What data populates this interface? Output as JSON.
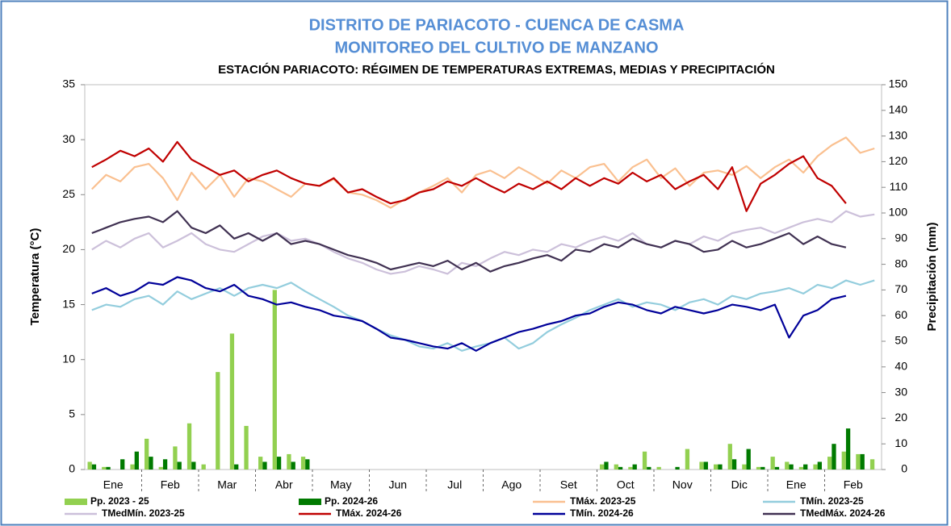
{
  "chart_data": {
    "type": "combo",
    "title": "DISTRITO DE PARIACOTO - CUENCA DE CASMA",
    "subtitle": "MONITOREO DEL CULTIVO DE MANZANO",
    "chart_title": "ESTACIÓN PARIACOTO: RÉGIMEN DE TEMPERATURAS EXTREMAS, MEDIAS Y PRECIPITACIÓN",
    "y_label": "Temperatura (°C)",
    "y2_label": "Precipitación (mm)",
    "categories": [
      null,
      null,
      "Ene",
      null,
      null,
      null,
      "Feb",
      null,
      null,
      null,
      "Mar",
      null,
      null,
      null,
      "Abr",
      null,
      null,
      null,
      "May",
      null,
      null,
      null,
      "Jun",
      null,
      null,
      null,
      "Jul",
      null,
      null,
      null,
      "Ago",
      null,
      null,
      null,
      "Set",
      null,
      null,
      null,
      "Oct",
      null,
      null,
      null,
      "Nov",
      null,
      null,
      null,
      "Dic",
      null,
      null,
      null,
      "Ene",
      null,
      null,
      null,
      "Feb",
      null
    ],
    "ylim": [
      0,
      35
    ],
    "yticks": [
      0,
      5,
      10,
      15,
      20,
      25,
      30,
      35
    ],
    "y2lim": [
      0,
      150
    ],
    "y2ticks": [
      0,
      10,
      20,
      30,
      40,
      50,
      60,
      70,
      80,
      90,
      100,
      110,
      120,
      130,
      140,
      150
    ],
    "grid": false,
    "legend": "bottom",
    "series": [
      {
        "name": "Pp. 2023 - 25",
        "type": "bar",
        "axis": "y2",
        "color": "#92d050",
        "values": [
          3,
          1,
          0,
          2,
          12,
          1,
          9,
          18,
          2,
          38,
          53,
          17,
          5,
          70,
          6,
          5,
          0,
          0,
          0,
          0,
          0,
          0,
          0,
          0,
          0,
          0,
          0,
          0,
          0,
          0,
          0,
          0,
          0,
          0,
          0,
          0,
          2,
          2,
          1,
          7,
          1,
          0,
          8,
          3,
          2,
          10,
          2,
          1,
          5,
          3,
          1,
          2,
          5,
          7,
          6,
          4
        ]
      },
      {
        "name": "Pp. 2024-26",
        "type": "bar",
        "axis": "y2",
        "color": "#007a00",
        "values": [
          2,
          1,
          4,
          7,
          5,
          4,
          3,
          3,
          0,
          0,
          2,
          0,
          3,
          5,
          3,
          4,
          0,
          0,
          0,
          0,
          0,
          0,
          0,
          0,
          0,
          0,
          0,
          0,
          0,
          0,
          0,
          0,
          0,
          0,
          0,
          0,
          3,
          1,
          2,
          1,
          0,
          1,
          0,
          3,
          2,
          4,
          8,
          1,
          1,
          2,
          2,
          3,
          10,
          16,
          6,
          null
        ]
      },
      {
        "name": "TMáx. 2023-25",
        "type": "line",
        "color": "#fac090",
        "values": [
          25.5,
          26.8,
          26.2,
          27.5,
          27.8,
          26.5,
          24.5,
          27,
          25.5,
          26.8,
          24.8,
          26.5,
          26.2,
          25.5,
          24.8,
          26,
          25.8,
          26.4,
          25.2,
          25,
          24.5,
          23.8,
          24.6,
          25.2,
          25.8,
          26.5,
          25.2,
          26.8,
          27.2,
          26.5,
          27.5,
          26.8,
          26,
          27.2,
          26.5,
          27.5,
          27.8,
          26.2,
          27.5,
          28.2,
          26.5,
          27.4,
          25.8,
          27,
          27.2,
          26.8,
          27.6,
          26.5,
          27.5,
          28.2,
          27,
          28.5,
          29.5,
          30.2,
          28.8,
          29.2
        ]
      },
      {
        "name": "TMín. 2023-25",
        "type": "line",
        "color": "#93cddd",
        "values": [
          14.5,
          15,
          14.8,
          15.5,
          15.8,
          15,
          16.2,
          15.5,
          16,
          16.5,
          15.8,
          16.5,
          16.8,
          16.5,
          17,
          16.2,
          15.5,
          14.8,
          14,
          13.5,
          12.8,
          12.2,
          11.8,
          11.2,
          11,
          11.5,
          10.8,
          11.2,
          11.5,
          12,
          11,
          11.5,
          12.5,
          13.2,
          13.8,
          14.5,
          15,
          15.5,
          14.8,
          15.2,
          15,
          14.5,
          15.2,
          15.5,
          15,
          15.8,
          15.5,
          16,
          16.2,
          16.5,
          16,
          16.8,
          16.5,
          17.2,
          16.8,
          17.2
        ]
      },
      {
        "name": "TMedMín. 2023-25",
        "type": "line",
        "color": "#ccc0da",
        "values": [
          20,
          20.8,
          20.2,
          21,
          21.5,
          20.2,
          20.8,
          21.5,
          20.5,
          20,
          19.8,
          20.5,
          21.2,
          21.5,
          20.8,
          21,
          20.5,
          19.8,
          19.2,
          18.8,
          18.2,
          17.8,
          18,
          18.5,
          18.2,
          17.8,
          18.8,
          18.5,
          19.2,
          19.8,
          19.5,
          20,
          19.8,
          20.5,
          20.2,
          20.8,
          21.2,
          20.8,
          21.5,
          20.5,
          20.2,
          20.8,
          20.5,
          21.2,
          20.8,
          21.5,
          21.8,
          22,
          21.5,
          22,
          22.5,
          22.8,
          22.5,
          23.5,
          23,
          23.2
        ]
      },
      {
        "name": "TMáx. 2024-26",
        "type": "line",
        "color": "#c00000",
        "values": [
          27.5,
          28.2,
          29,
          28.5,
          29.2,
          28,
          29.8,
          28.2,
          27.5,
          26.8,
          27.2,
          26.2,
          26.8,
          27.2,
          26.5,
          26,
          25.8,
          26.5,
          25.2,
          25.5,
          24.8,
          24.2,
          24.5,
          25.2,
          25.5,
          26.2,
          25.8,
          26.5,
          25.8,
          25.2,
          26,
          25.5,
          26.2,
          25.5,
          26.5,
          25.8,
          26.5,
          26,
          27,
          26.2,
          26.8,
          25.5,
          26.2,
          26.8,
          25.5,
          27.5,
          23.5,
          26,
          26.8,
          27.8,
          28.5,
          26.5,
          25.8,
          24.2,
          null,
          null
        ]
      },
      {
        "name": "TMín. 2024-26",
        "type": "line",
        "color": "#000099",
        "values": [
          16,
          16.5,
          15.8,
          16.2,
          17,
          16.8,
          17.5,
          17.2,
          16.5,
          16.2,
          16.8,
          15.8,
          15.5,
          15,
          15.2,
          14.8,
          14.5,
          14,
          13.8,
          13.5,
          12.8,
          12,
          11.8,
          11.5,
          11.2,
          11,
          11.5,
          10.8,
          11.5,
          12,
          12.5,
          12.8,
          13.2,
          13.5,
          14,
          14.2,
          14.8,
          15.2,
          15,
          14.5,
          14.2,
          14.8,
          14.5,
          14.2,
          14.5,
          15,
          14.8,
          14.5,
          15,
          12,
          14,
          14.5,
          15.5,
          15.8,
          null,
          null
        ]
      },
      {
        "name": "TMedMáx. 2024-26",
        "type": "line",
        "color": "#403152",
        "values": [
          21.5,
          22,
          22.5,
          22.8,
          23,
          22.5,
          23.5,
          22,
          21.5,
          22.2,
          21,
          21.5,
          20.8,
          21.5,
          20.5,
          20.8,
          20.5,
          20,
          19.5,
          19.2,
          18.8,
          18.2,
          18.5,
          18.8,
          18.5,
          19,
          18.2,
          18.8,
          18,
          18.5,
          18.8,
          19.2,
          19.5,
          19,
          20,
          19.8,
          20.5,
          20.2,
          21,
          20.5,
          20.2,
          20.8,
          20.5,
          19.8,
          20,
          20.8,
          20.2,
          20.5,
          21,
          21.5,
          20.5,
          21.2,
          20.5,
          20.2,
          null,
          null
        ]
      }
    ]
  }
}
